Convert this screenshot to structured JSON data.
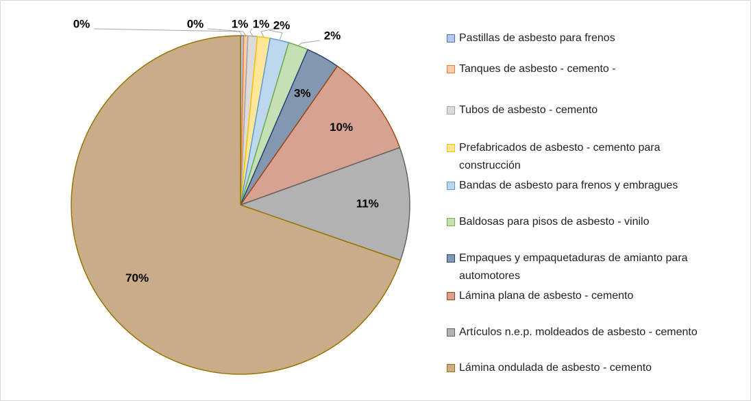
{
  "chart_data": {
    "type": "pie",
    "categories": [
      "Pastillas de asbesto para frenos",
      "Tanques de asbesto - cemento -",
      "Tubos de asbesto - cemento",
      "Prefabricados de asbesto - cemento para construcción",
      "Bandas de asbesto para frenos y embragues",
      "Baldosas para pisos de asbesto - vinilo",
      "Empaques y empaquetaduras de amianto para automotores",
      "Lámina plana de asbesto - cemento",
      "Artículos n.e.p. moldeados de asbesto - cemento",
      "Lámina ondulada de asbesto - cemento"
    ],
    "values": [
      0.3,
      0.4,
      0.9,
      1.2,
      1.8,
      1.9,
      3.2,
      9.8,
      10.8,
      69.7
    ],
    "value_labels": [
      "0%",
      "0%",
      "1%",
      "1%",
      "2%",
      "2%",
      "3%",
      "10%",
      "11%",
      "70%"
    ],
    "colors": [
      "#b4c7e7",
      "#f8cbad",
      "#dbdbdb",
      "#ffe699",
      "#bdd7ee",
      "#c5e0b4",
      "#8497b0",
      "#d6a392",
      "#b2b2b2",
      "#c8ad88"
    ],
    "border_colors": [
      "#4472c4",
      "#ed7d31",
      "#a5a5a5",
      "#ffc000",
      "#5b9bd5",
      "#70ad47",
      "#264478",
      "#9e480e",
      "#636363",
      "#997300"
    ],
    "legend": "right"
  }
}
